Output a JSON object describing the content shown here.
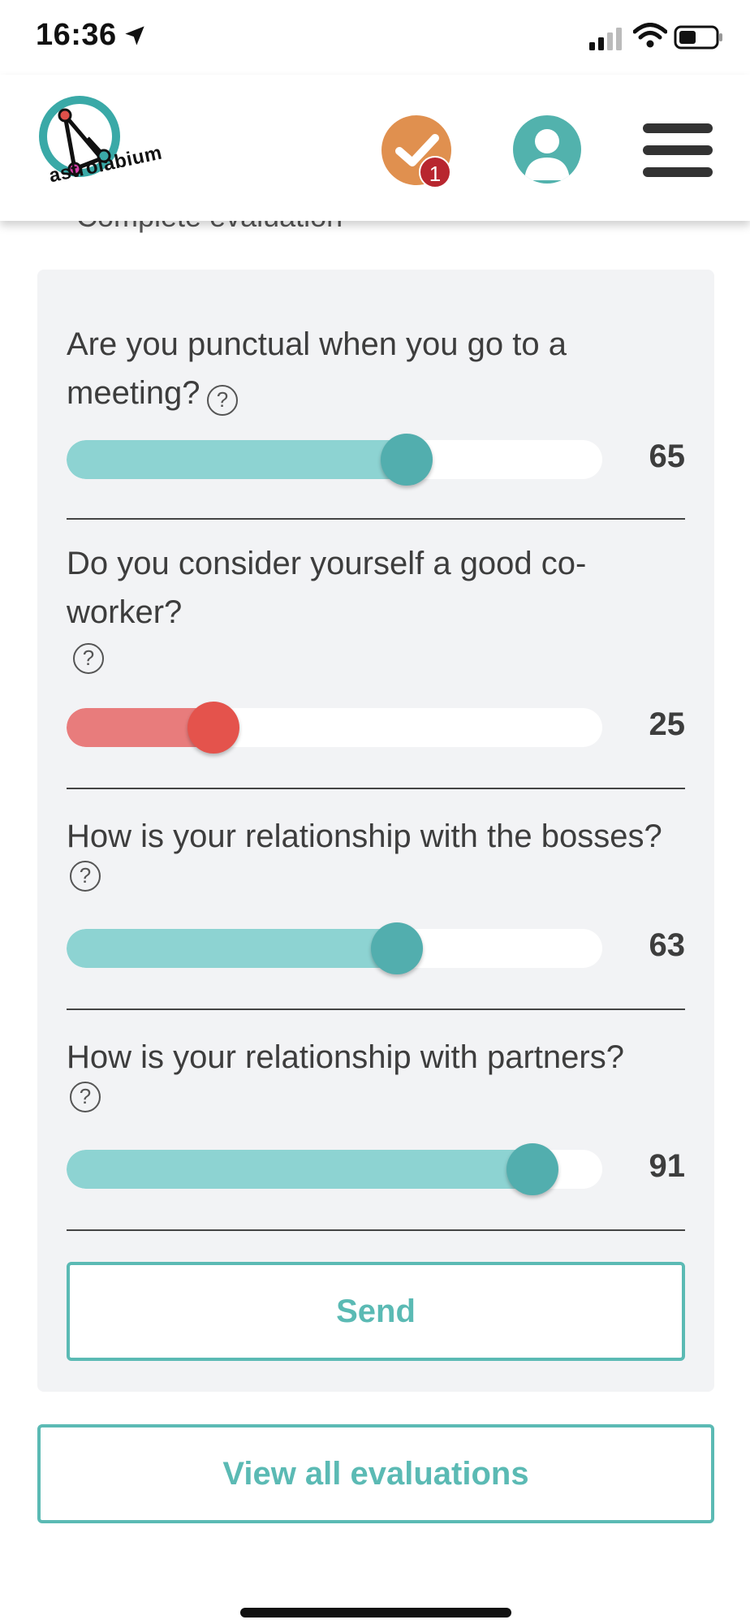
{
  "status_bar": {
    "time": "16:36"
  },
  "header": {
    "logo_text": "astrolabium",
    "notification_count": "1",
    "icons": {
      "check": "check-icon",
      "profile": "user-icon",
      "menu": "hamburger-menu-icon"
    }
  },
  "page_title": "Complete evaluation",
  "questions": [
    {
      "text": "Are you punctual when you go to a meeting?",
      "help": "?",
      "value": "65",
      "level": 0.65,
      "color": "teal"
    },
    {
      "text": "Do you consider yourself a good co-worker?",
      "help": "?",
      "value": "25",
      "level": 0.25,
      "color": "red"
    },
    {
      "text": "How is your relationship with the bosses?",
      "help": "?",
      "value": "63",
      "level": 0.63,
      "color": "teal"
    },
    {
      "text": "How is your relationship with partners?",
      "help": "?",
      "value": "91",
      "level": 0.91,
      "color": "teal"
    }
  ],
  "send_label": "Send",
  "view_all_label": "View all evaluations",
  "colors": {
    "accent": "#5bbab4",
    "teal_fill": "#8dd3d2",
    "red_fill": "#e87c7c",
    "orange": "#e0904f",
    "badge": "#b8262f"
  }
}
